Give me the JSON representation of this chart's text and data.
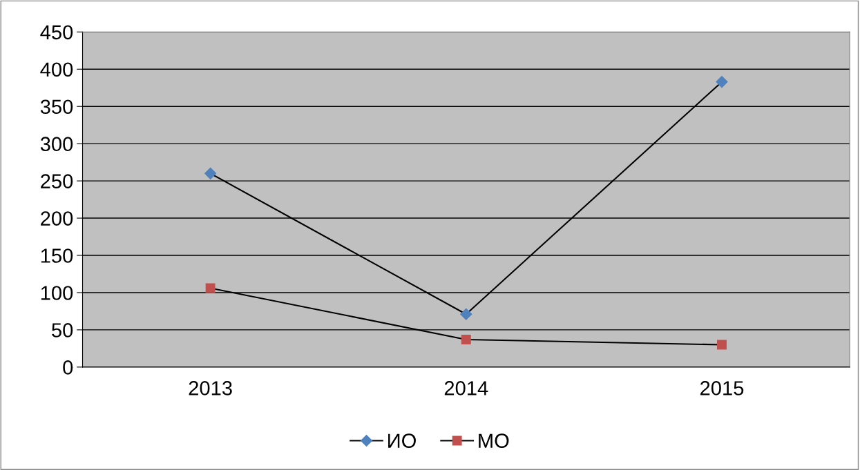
{
  "chart_data": {
    "type": "line",
    "categories": [
      "2013",
      "2014",
      "2015"
    ],
    "series": [
      {
        "name": "ИО",
        "color": "#4f81bd",
        "marker": "diamond",
        "values": [
          260,
          71,
          383
        ]
      },
      {
        "name": "МО",
        "color": "#c0504d",
        "marker": "square",
        "values": [
          106,
          37,
          30
        ]
      }
    ],
    "ylim": [
      0,
      450
    ],
    "yticks": [
      0,
      50,
      100,
      150,
      200,
      250,
      300,
      350,
      400,
      450
    ],
    "grid": "y",
    "legend": "bottom"
  }
}
